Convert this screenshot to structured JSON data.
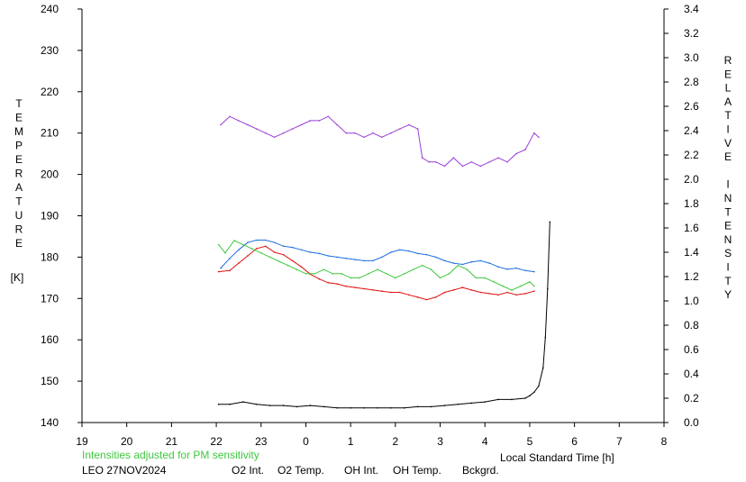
{
  "chart_data": {
    "type": "line",
    "left_axis_label": "TEMPERATURE",
    "left_axis_unit": "[K]",
    "right_axis_label": "RELATIVE INTENSITY",
    "xlabel": "Local Standard Time [h]",
    "note": "Intensities adjusted for PM sensitivity",
    "station_date": "LEO 27NOV2024",
    "x_ticks": [
      "19",
      "20",
      "21",
      "22",
      "23",
      "0",
      "1",
      "2",
      "3",
      "4",
      "5",
      "6",
      "7",
      "8"
    ],
    "xlim": [
      19,
      32
    ],
    "left_ticks": [
      "140",
      "150",
      "160",
      "170",
      "180",
      "190",
      "200",
      "210",
      "220",
      "230",
      "240"
    ],
    "ylim_left": [
      140,
      240
    ],
    "right_ticks": [
      "0.0",
      "0.2",
      "0.4",
      "0.6",
      "0.8",
      "1.0",
      "1.2",
      "1.4",
      "1.6",
      "1.8",
      "2.0",
      "2.2",
      "2.4",
      "2.6",
      "2.8",
      "3.0",
      "3.2",
      "3.4"
    ],
    "ylim_right": [
      0.0,
      3.4
    ],
    "grid": false,
    "legend_position": "bottom",
    "series": [
      {
        "name": "O2 Int.",
        "axis": "right",
        "color": "#1e6fe0",
        "x": [
          "22.10",
          "22.30",
          "22.50",
          "22.70",
          "22.90",
          "23.10",
          "23.30",
          "23.50",
          "23.70",
          "23.90",
          "0.10",
          "0.30",
          "0.50",
          "0.70",
          "0.90",
          "1.10",
          "1.30",
          "1.50",
          "1.70",
          "1.90",
          "2.10",
          "2.30",
          "2.50",
          "2.70",
          "2.90",
          "3.10",
          "3.30",
          "3.50",
          "3.70",
          "3.90",
          "4.10",
          "4.30",
          "4.50",
          "4.70",
          "4.90",
          "5.10"
        ],
        "y": [
          1.27,
          1.35,
          1.42,
          1.48,
          1.5,
          1.5,
          1.48,
          1.45,
          1.44,
          1.42,
          1.4,
          1.39,
          1.37,
          1.36,
          1.35,
          1.34,
          1.33,
          1.33,
          1.36,
          1.4,
          1.42,
          1.41,
          1.39,
          1.38,
          1.36,
          1.33,
          1.31,
          1.3,
          1.32,
          1.33,
          1.31,
          1.28,
          1.26,
          1.27,
          1.25,
          1.24
        ]
      },
      {
        "name": "O2 Temp.",
        "axis": "left",
        "color": "#9b3fd6",
        "x": [
          "22.10",
          "22.30",
          "22.50",
          "22.70",
          "22.90",
          "23.10",
          "23.30",
          "23.50",
          "23.70",
          "23.90",
          "0.10",
          "0.30",
          "0.50",
          "0.70",
          "0.90",
          "1.10",
          "1.30",
          "1.50",
          "1.70",
          "1.90",
          "2.10",
          "2.30",
          "2.50",
          "2.60",
          "2.75",
          "2.90",
          "3.10",
          "3.30",
          "3.50",
          "3.70",
          "3.90",
          "4.10",
          "4.30",
          "4.50",
          "4.70",
          "4.90",
          "5.10",
          "5.20"
        ],
        "y": [
          212,
          214,
          213,
          212,
          211,
          210,
          209,
          210,
          211,
          212,
          213,
          213,
          214,
          212,
          210,
          210,
          209,
          210,
          209,
          210,
          211,
          212,
          211,
          204,
          203,
          203,
          202,
          204,
          202,
          203,
          202,
          203,
          204,
          203,
          205,
          206,
          210,
          209
        ]
      },
      {
        "name": "OH Int.",
        "axis": "right",
        "color": "#e01010",
        "x": [
          "22.05",
          "22.30",
          "22.50",
          "22.70",
          "22.90",
          "23.10",
          "23.30",
          "23.50",
          "23.70",
          "23.90",
          "0.10",
          "0.30",
          "0.50",
          "0.70",
          "0.90",
          "1.10",
          "1.30",
          "1.50",
          "1.70",
          "1.90",
          "2.10",
          "2.30",
          "2.50",
          "2.70",
          "2.90",
          "3.10",
          "3.30",
          "3.50",
          "3.70",
          "3.90",
          "4.10",
          "4.30",
          "4.50",
          "4.70",
          "4.90",
          "5.10"
        ],
        "y": [
          1.24,
          1.25,
          1.31,
          1.37,
          1.43,
          1.45,
          1.4,
          1.38,
          1.33,
          1.28,
          1.22,
          1.18,
          1.15,
          1.14,
          1.12,
          1.11,
          1.1,
          1.09,
          1.08,
          1.07,
          1.07,
          1.05,
          1.03,
          1.01,
          1.03,
          1.07,
          1.09,
          1.11,
          1.09,
          1.07,
          1.06,
          1.05,
          1.07,
          1.05,
          1.06,
          1.08
        ]
      },
      {
        "name": "OH Temp.",
        "axis": "left",
        "color": "#3fc83f",
        "x": [
          "22.05",
          "22.20",
          "22.40",
          "22.60",
          "22.80",
          "23.00",
          "23.20",
          "23.40",
          "23.60",
          "23.80",
          "0.00",
          "0.20",
          "0.40",
          "0.60",
          "0.80",
          "1.00",
          "1.20",
          "1.40",
          "1.60",
          "1.80",
          "2.00",
          "2.20",
          "2.40",
          "2.60",
          "2.80",
          "3.00",
          "3.20",
          "3.40",
          "3.60",
          "3.80",
          "4.00",
          "4.20",
          "4.40",
          "4.60",
          "4.80",
          "5.00",
          "5.10"
        ],
        "y": [
          183,
          181,
          184,
          183,
          182,
          181,
          180,
          179,
          178,
          177,
          176,
          176,
          177,
          176,
          176,
          175,
          175,
          176,
          177,
          176,
          175,
          176,
          177,
          178,
          177,
          175,
          176,
          178,
          177,
          175,
          175,
          174,
          173,
          172,
          173,
          174,
          173
        ]
      },
      {
        "name": "Bckgrd.",
        "axis": "right",
        "color": "#000000",
        "x": [
          "22.05",
          "22.30",
          "22.60",
          "22.90",
          "23.20",
          "23.50",
          "23.80",
          "0.10",
          "0.40",
          "0.70",
          "1.00",
          "1.30",
          "1.60",
          "1.90",
          "2.20",
          "2.50",
          "2.80",
          "3.10",
          "3.40",
          "3.70",
          "4.00",
          "4.30",
          "4.60",
          "4.90",
          "5.00",
          "5.10",
          "5.20",
          "5.30",
          "5.35",
          "5.40",
          "5.45"
        ],
        "y": [
          0.15,
          0.15,
          0.17,
          0.15,
          0.14,
          0.14,
          0.13,
          0.14,
          0.13,
          0.12,
          0.12,
          0.12,
          0.12,
          0.12,
          0.12,
          0.13,
          0.13,
          0.14,
          0.15,
          0.16,
          0.17,
          0.19,
          0.19,
          0.2,
          0.22,
          0.25,
          0.3,
          0.45,
          0.7,
          1.1,
          1.65
        ]
      }
    ]
  }
}
